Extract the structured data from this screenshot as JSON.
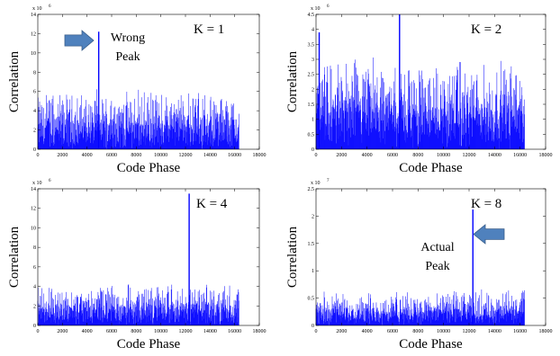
{
  "chart_data": [
    {
      "type": "line",
      "panel_label": "K = 1",
      "xlabel": "Code Phase",
      "ylabel": "Correlation",
      "xlim": [
        0,
        18000
      ],
      "ylim": [
        0,
        14
      ],
      "x_ticks": [
        0,
        2000,
        4000,
        6000,
        8000,
        10000,
        12000,
        14000,
        16000,
        18000
      ],
      "y_ticks": [
        0,
        2,
        4,
        6,
        8,
        10,
        12,
        14
      ],
      "y_exponent": "x 10",
      "y_exponent_power": "6",
      "series": [
        {
          "color": "#0000ff",
          "x_range": [
            0,
            16368
          ],
          "noise_floor_max": 6.3,
          "peaks": [
            {
              "x": 4950,
              "y": 12.2
            }
          ]
        }
      ],
      "annotation": {
        "text": "Wrong Peak",
        "lines": [
          "Wrong",
          "Peak"
        ],
        "arrow_direction": "right",
        "arrow_color": "#4f81bd"
      }
    },
    {
      "type": "line",
      "panel_label": "K = 2",
      "xlabel": "Code Phase",
      "ylabel": "Correlation",
      "xlim": [
        0,
        18000
      ],
      "ylim": [
        0,
        4.5
      ],
      "x_ticks": [
        0,
        2000,
        4000,
        6000,
        8000,
        10000,
        12000,
        14000,
        16000,
        18000
      ],
      "y_ticks": [
        0,
        0.5,
        1,
        1.5,
        2,
        2.5,
        3,
        3.5,
        4,
        4.5
      ],
      "y_exponent": "x 10",
      "y_exponent_power": "6",
      "series": [
        {
          "color": "#0000ff",
          "x_range": [
            0,
            16368
          ],
          "noise_floor_max": 3.1,
          "peaks": [
            {
              "x": 250,
              "y": 3.9
            },
            {
              "x": 6550,
              "y": 4.5
            }
          ]
        }
      ]
    },
    {
      "type": "line",
      "panel_label": "K = 4",
      "xlabel": "Code Phase",
      "ylabel": "Correlation",
      "xlim": [
        0,
        18000
      ],
      "ylim": [
        0,
        14
      ],
      "x_ticks": [
        0,
        2000,
        4000,
        6000,
        8000,
        10000,
        12000,
        14000,
        16000,
        18000
      ],
      "y_ticks": [
        0,
        2,
        4,
        6,
        8,
        10,
        12,
        14
      ],
      "y_exponent": "x 10",
      "y_exponent_power": "6",
      "series": [
        {
          "color": "#0000ff",
          "x_range": [
            0,
            16368
          ],
          "noise_floor_max": 4.4,
          "peaks": [
            {
              "x": 12300,
              "y": 13.5
            }
          ]
        }
      ]
    },
    {
      "type": "line",
      "panel_label": "K = 8",
      "xlabel": "Code Phase",
      "ylabel": "Correlation",
      "xlim": [
        0,
        18000
      ],
      "ylim": [
        0,
        2.5
      ],
      "x_ticks": [
        0,
        2000,
        4000,
        6000,
        8000,
        10000,
        12000,
        14000,
        16000,
        18000
      ],
      "y_ticks": [
        0,
        0.5,
        1,
        1.5,
        2,
        2.5
      ],
      "y_exponent": "x 10",
      "y_exponent_power": "7",
      "series": [
        {
          "color": "#0000ff",
          "x_range": [
            0,
            16368
          ],
          "noise_floor_max": 0.66,
          "peaks": [
            {
              "x": 12300,
              "y": 2.12
            }
          ]
        }
      ],
      "annotation": {
        "text": "Actual Peak",
        "lines": [
          "Actual",
          "Peak"
        ],
        "arrow_direction": "left",
        "arrow_color": "#4f81bd"
      }
    }
  ]
}
